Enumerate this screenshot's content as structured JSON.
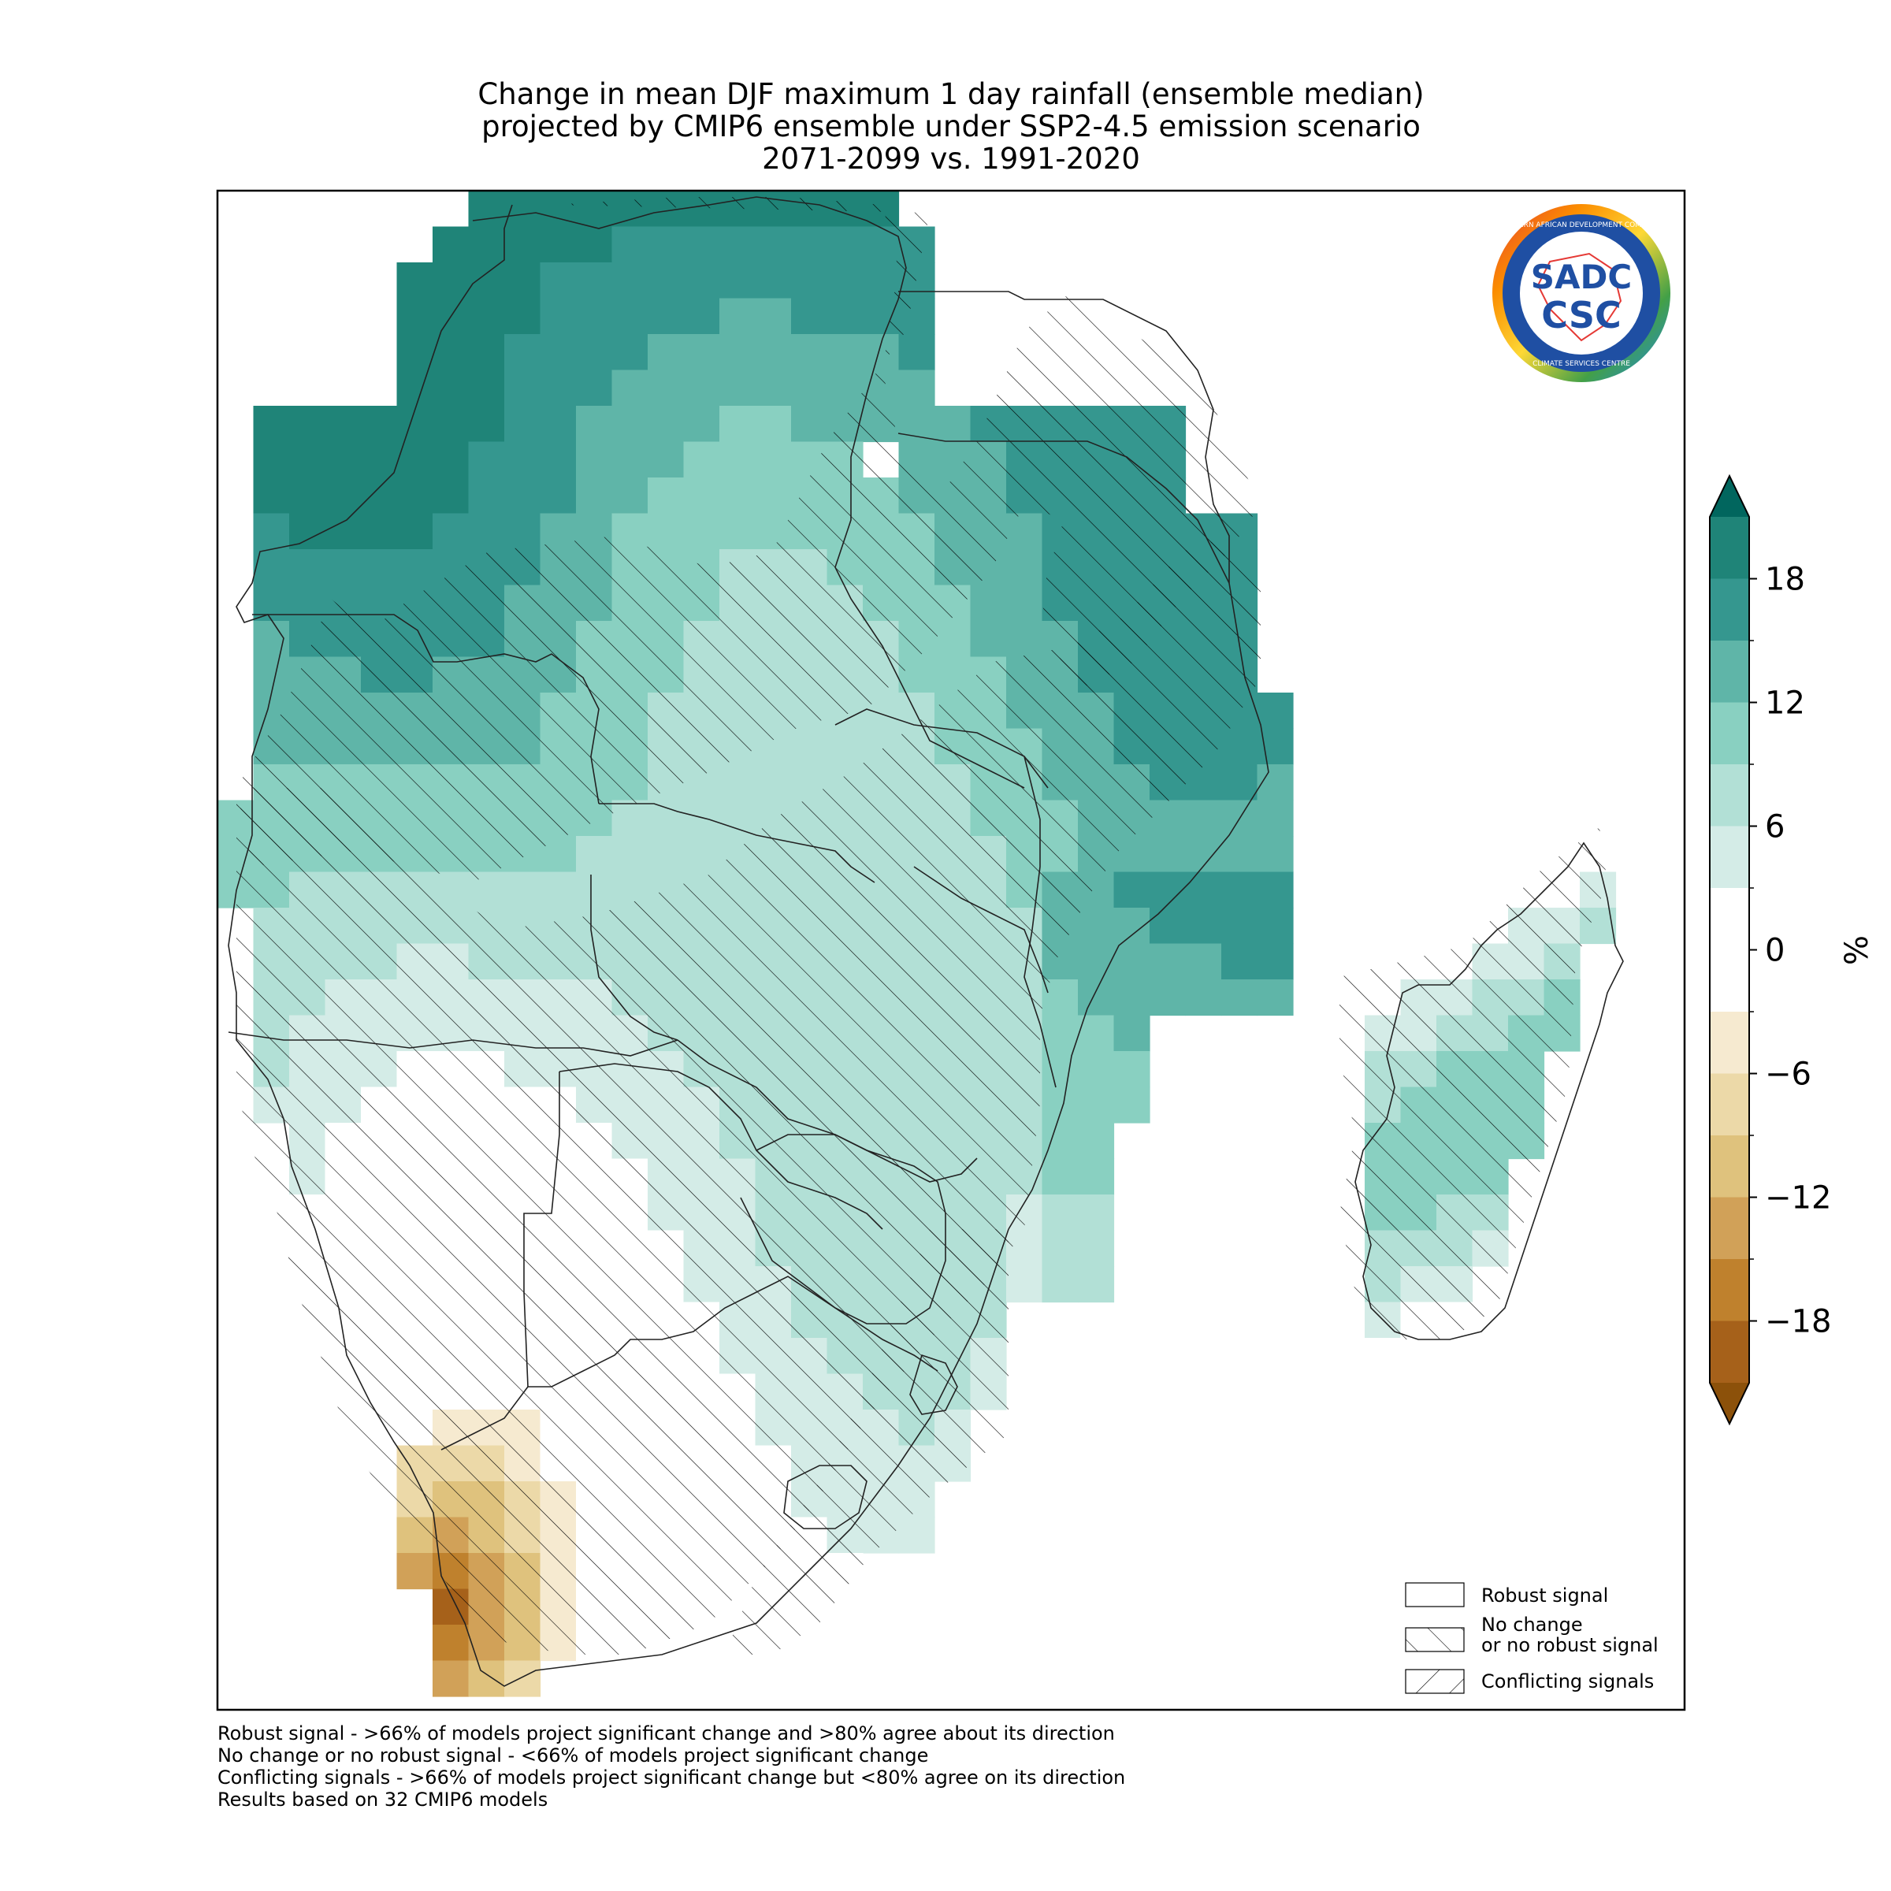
{
  "title_lines": [
    "Change in mean DJF maximum 1 day rainfall (ensemble median)",
    "projected by CMIP6 ensemble under SSP2-4.5 emission scenario",
    "2071-2099 vs. 1991-2020"
  ],
  "logo": {
    "name": "SADC CSC",
    "ring_text_top": "SOUTHERN AFRICAN DEVELOPMENT COMMUNITY",
    "ring_text_bottom": "CLIMATE SERVICES CENTRE",
    "monogram_top": "SADC",
    "monogram_bottom": "CSC"
  },
  "legend": {
    "items": [
      {
        "label": "Robust signal",
        "pattern": "none"
      },
      {
        "label": "No change\nor no robust signal",
        "pattern": "hatch-forward"
      },
      {
        "label": "Conflicting signals",
        "pattern": "hatch-back"
      }
    ]
  },
  "colorbar": {
    "unit": "%",
    "ticks": [
      18,
      12,
      6,
      0,
      -6,
      -12,
      -18
    ],
    "tick_labels": [
      "18",
      "12",
      "6",
      "0",
      "−6",
      "−12",
      "−18"
    ],
    "bounds": [
      -21,
      -18,
      -15,
      -12,
      -9,
      -6,
      -3,
      3,
      6,
      9,
      12,
      15,
      18,
      21
    ],
    "colors": [
      "#a6611a",
      "#bf812d",
      "#d1a158",
      "#dfc27d",
      "#ecd9a8",
      "#f6ead0",
      "#ffffff",
      "#d4ece7",
      "#b2e0d6",
      "#89d0c1",
      "#5fb5a8",
      "#35978f",
      "#1f8478"
    ],
    "extend_min_color": "#8c510a",
    "extend_max_color": "#01665e"
  },
  "footnotes": [
    "Robust signal - >66% of models project significant change and >80% agree about its direction",
    "No change or no robust signal - <66% of models project significant change",
    "Conflicting signals - >66% of models project significant change but <80% agree on its direction",
    "Results based on 32 CMIP6 models"
  ]
}
